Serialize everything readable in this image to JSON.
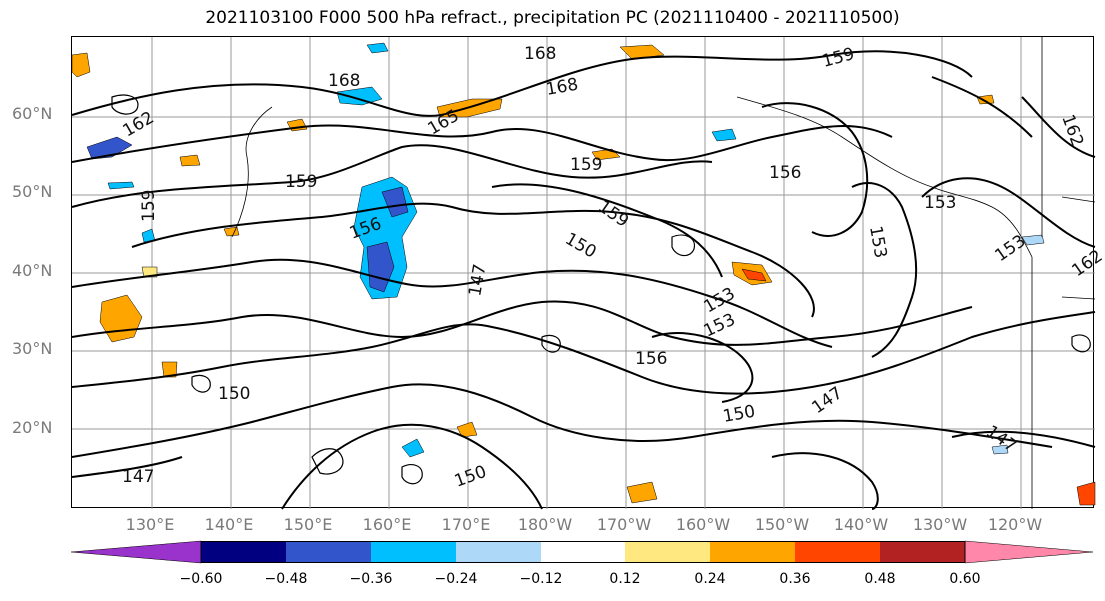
{
  "title": "2021103100 F000 500 hPa refract., precipitation PC (2021110400 - 2021110500)",
  "lat_labels": [
    "60°N",
    "50°N",
    "40°N",
    "30°N",
    "20°N"
  ],
  "lon_labels": [
    "130°E",
    "140°E",
    "150°E",
    "160°E",
    "170°E",
    "180°W",
    "170°W",
    "160°W",
    "150°W",
    "140°W",
    "130°W",
    "120°W"
  ],
  "contour_labels": [
    "168",
    "168",
    "168",
    "159",
    "162",
    "165",
    "159",
    "159",
    "156",
    "153",
    "156",
    "159",
    "150",
    "147",
    "153",
    "153",
    "156",
    "150",
    "147",
    "147",
    "153",
    "162",
    "150",
    "150",
    "147",
    "153",
    "159",
    "162"
  ],
  "colorbar": {
    "colors": [
      "#9933cc",
      "#000080",
      "#3355cc",
      "#00bfff",
      "#add8f7",
      "#ffffff",
      "#ffe87f",
      "#ffa500",
      "#ff4500",
      "#b22222",
      "#ff88aa"
    ],
    "ticks": [
      "−0.60",
      "−0.48",
      "−0.36",
      "−0.24",
      "−0.12",
      "0.12",
      "0.24",
      "0.36",
      "0.48",
      "0.60"
    ]
  }
}
